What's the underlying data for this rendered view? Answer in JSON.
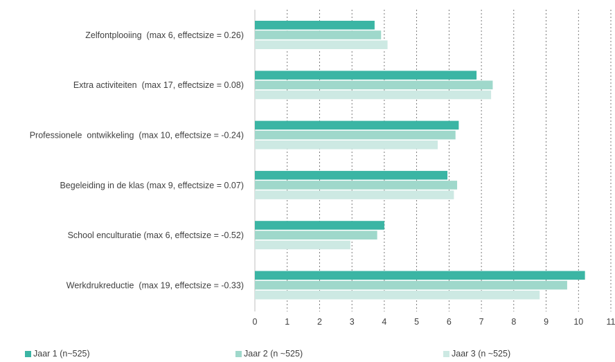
{
  "chart_data": {
    "type": "bar",
    "orientation": "horizontal",
    "categories": [
      "Zelfontplooiing  (max 6, effectsize = 0.26)",
      "Extra activiteiten  (max 17, effectsize = 0.08)",
      "Professionele  ontwikkeling  (max 10, effectsize = -0.24)",
      "Begeleiding in de klas (max 9, effectsize = 0.07)",
      "School enculturatie (max 6, effectsize = -0.52)",
      "Werkdrukreductie  (max 19, effectsize = -0.33)"
    ],
    "series": [
      {
        "name": "Jaar 1 (n~525)",
        "color": "#3bb5a4",
        "values": [
          3.7,
          6.85,
          6.3,
          5.95,
          4.0,
          10.2
        ]
      },
      {
        "name": "Jaar 2 (n ~525)",
        "color": "#9fd8cb",
        "values": [
          3.9,
          7.35,
          6.2,
          6.25,
          3.78,
          9.65
        ]
      },
      {
        "name": "Jaar 3 (n ~525)",
        "color": "#cde9e3",
        "values": [
          4.1,
          7.3,
          5.65,
          6.15,
          2.95,
          8.8
        ]
      }
    ],
    "xlim": [
      0,
      11
    ],
    "x_ticks": [
      "0",
      "1",
      "2",
      "3",
      "4",
      "5",
      "6",
      "7",
      "8",
      "9",
      "10",
      "11"
    ],
    "grid": "vertical dashed",
    "legend_position": "bottom"
  }
}
